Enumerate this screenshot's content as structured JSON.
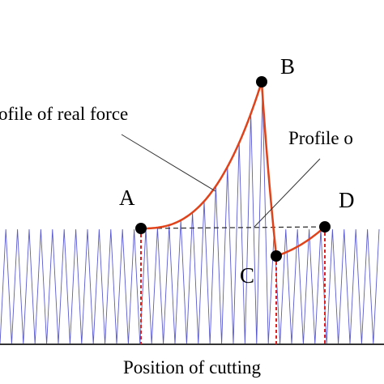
{
  "labels": {
    "real_force": "ofile of real force",
    "profile": "Profile o",
    "a": "A",
    "b": "B",
    "c": "C",
    "d": "D",
    "x_axis": "Position of cutting"
  }
}
